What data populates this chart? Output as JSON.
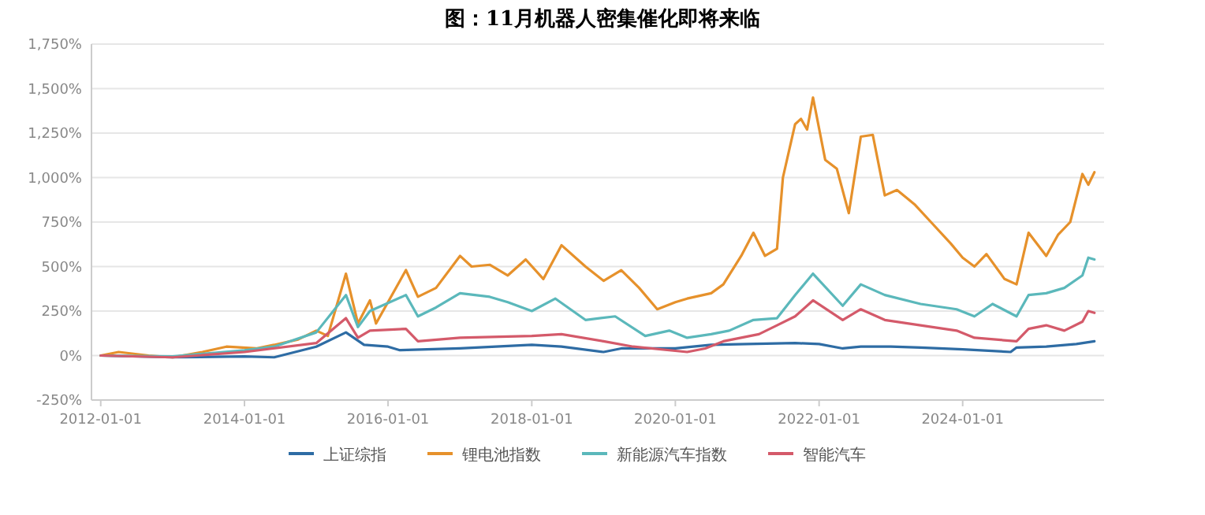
{
  "chart_data": {
    "type": "line",
    "title": "图：11月机器人密集催化即将来临",
    "xlim": [
      "2011-11-15",
      "2025-12-20"
    ],
    "xticks": [
      "2012-01-01",
      "2014-01-01",
      "2016-01-01",
      "2018-01-01",
      "2020-01-01",
      "2022-01-01",
      "2024-01-01"
    ],
    "ylim": [
      -250,
      1750
    ],
    "yticks": [
      {
        "value": -250,
        "label": "-250%"
      },
      {
        "value": 0,
        "label": "0%"
      },
      {
        "value": 250,
        "label": "250%"
      },
      {
        "value": 500,
        "label": "500%"
      },
      {
        "value": 750,
        "label": "750%"
      },
      {
        "value": 1000,
        "label": "1,000%"
      },
      {
        "value": 1250,
        "label": "1,250%"
      },
      {
        "value": 1500,
        "label": "1,500%"
      },
      {
        "value": 1750,
        "label": "1,750%"
      }
    ],
    "grid": "y",
    "legend": "bottom",
    "line_style": "solid",
    "marker": "none",
    "series": [
      {
        "name": "上证综指",
        "color": "#2e6ca4",
        "x": [
          "2012-01-01",
          "2013-01-01",
          "2014-01-01",
          "2014-06-01",
          "2015-01-01",
          "2015-06-01",
          "2015-09-01",
          "2016-01-01",
          "2016-03-01",
          "2017-01-01",
          "2018-01-01",
          "2018-06-01",
          "2019-01-01",
          "2019-04-01",
          "2020-01-01",
          "2020-07-01",
          "2021-01-01",
          "2021-09-01",
          "2022-01-01",
          "2022-05-01",
          "2022-08-01",
          "2023-01-01",
          "2023-06-01",
          "2024-01-01",
          "2024-09-01",
          "2024-10-01",
          "2025-03-01",
          "2025-08-01",
          "2025-11-01"
        ],
        "values": [
          0,
          -10,
          -5,
          -10,
          50,
          130,
          60,
          50,
          30,
          40,
          60,
          50,
          20,
          40,
          40,
          60,
          65,
          70,
          65,
          40,
          50,
          50,
          45,
          35,
          20,
          45,
          50,
          65,
          80
        ]
      },
      {
        "name": "锂电池指数",
        "color": "#e6912b",
        "x": [
          "2012-01-01",
          "2012-04-01",
          "2012-09-01",
          "2013-01-01",
          "2013-06-01",
          "2013-10-01",
          "2014-03-01",
          "2014-06-01",
          "2014-10-01",
          "2015-01-01",
          "2015-03-01",
          "2015-06-01",
          "2015-08-01",
          "2015-10-01",
          "2015-11-01",
          "2016-04-01",
          "2016-06-01",
          "2016-09-01",
          "2017-01-01",
          "2017-03-01",
          "2017-06-01",
          "2017-09-01",
          "2017-12-01",
          "2018-03-01",
          "2018-06-01",
          "2018-10-01",
          "2019-01-01",
          "2019-04-01",
          "2019-07-01",
          "2019-10-01",
          "2020-01-01",
          "2020-03-01",
          "2020-07-01",
          "2020-09-01",
          "2020-12-01",
          "2021-02-01",
          "2021-04-01",
          "2021-06-01",
          "2021-07-01",
          "2021-09-01",
          "2021-10-01",
          "2021-11-01",
          "2021-12-01",
          "2022-02-01",
          "2022-04-01",
          "2022-06-01",
          "2022-08-01",
          "2022-10-01",
          "2022-12-01",
          "2023-02-01",
          "2023-05-01",
          "2023-08-01",
          "2023-11-01",
          "2024-01-01",
          "2024-03-01",
          "2024-05-01",
          "2024-08-01",
          "2024-10-01",
          "2024-12-01",
          "2025-03-01",
          "2025-05-01",
          "2025-07-01",
          "2025-09-01",
          "2025-10-01",
          "2025-11-01"
        ],
        "values": [
          0,
          20,
          0,
          -10,
          20,
          50,
          40,
          60,
          90,
          140,
          110,
          460,
          180,
          310,
          180,
          480,
          330,
          380,
          560,
          500,
          510,
          450,
          540,
          430,
          620,
          500,
          420,
          480,
          380,
          260,
          300,
          320,
          350,
          400,
          560,
          690,
          560,
          600,
          1000,
          1300,
          1330,
          1270,
          1450,
          1100,
          1050,
          800,
          1230,
          1240,
          900,
          930,
          850,
          740,
          630,
          550,
          500,
          570,
          430,
          400,
          690,
          560,
          680,
          750,
          1020,
          960,
          1030
        ]
      },
      {
        "name": "新能源汽车指数",
        "color": "#5bb8bb",
        "x": [
          "2012-01-01",
          "2013-01-01",
          "2014-01-01",
          "2014-06-01",
          "2015-01-01",
          "2015-06-01",
          "2015-08-01",
          "2015-10-01",
          "2016-04-01",
          "2016-06-01",
          "2016-09-01",
          "2017-01-01",
          "2017-06-01",
          "2017-09-01",
          "2018-01-01",
          "2018-05-01",
          "2018-10-01",
          "2019-03-01",
          "2019-08-01",
          "2019-12-01",
          "2020-03-01",
          "2020-07-01",
          "2020-10-01",
          "2021-02-01",
          "2021-06-01",
          "2021-09-01",
          "2021-12-01",
          "2022-05-01",
          "2022-08-01",
          "2022-12-01",
          "2023-06-01",
          "2023-12-01",
          "2024-03-01",
          "2024-06-01",
          "2024-10-01",
          "2024-12-01",
          "2025-03-01",
          "2025-06-01",
          "2025-09-01",
          "2025-10-01",
          "2025-11-01"
        ],
        "values": [
          0,
          -5,
          30,
          50,
          130,
          340,
          160,
          250,
          340,
          220,
          270,
          350,
          330,
          300,
          250,
          320,
          200,
          220,
          110,
          140,
          100,
          120,
          140,
          200,
          210,
          340,
          460,
          280,
          400,
          340,
          290,
          260,
          220,
          290,
          220,
          340,
          350,
          380,
          450,
          550,
          540
        ]
      },
      {
        "name": "智能汽车",
        "color": "#d45a6a",
        "x": [
          "2012-01-01",
          "2013-01-01",
          "2014-01-01",
          "2015-01-01",
          "2015-06-01",
          "2015-08-01",
          "2015-10-01",
          "2016-04-01",
          "2016-06-01",
          "2017-01-01",
          "2018-01-01",
          "2018-06-01",
          "2019-01-01",
          "2019-06-01",
          "2020-03-01",
          "2020-06-01",
          "2020-09-01",
          "2021-03-01",
          "2021-06-01",
          "2021-09-01",
          "2021-12-01",
          "2022-05-01",
          "2022-08-01",
          "2022-12-01",
          "2023-06-01",
          "2023-12-01",
          "2024-03-01",
          "2024-10-01",
          "2024-12-01",
          "2025-03-01",
          "2025-06-01",
          "2025-09-01",
          "2025-10-01",
          "2025-11-01"
        ],
        "values": [
          0,
          -10,
          20,
          70,
          210,
          100,
          140,
          150,
          80,
          100,
          110,
          120,
          80,
          50,
          20,
          40,
          80,
          120,
          170,
          220,
          310,
          200,
          260,
          200,
          170,
          140,
          100,
          80,
          150,
          170,
          140,
          190,
          250,
          240
        ]
      }
    ]
  }
}
